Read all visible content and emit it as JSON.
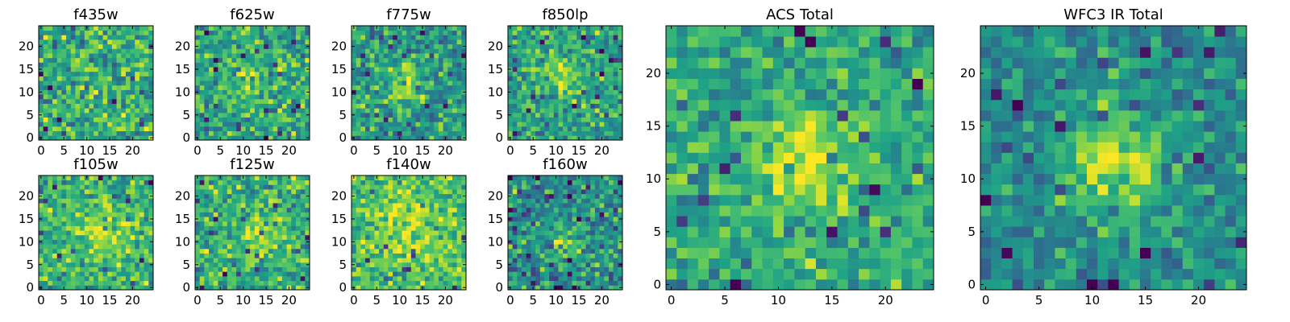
{
  "figure": {
    "colormap": "viridis",
    "colormap_stops": [
      "#440154",
      "#46327e",
      "#365c8d",
      "#277f8e",
      "#1fa187",
      "#4ac16d",
      "#a0da39",
      "#fde725"
    ],
    "axis_color": "#000000"
  },
  "chart_data": [
    {
      "type": "heatmap",
      "title": "f435w",
      "grid_size": 25,
      "xlim": [
        0,
        24
      ],
      "ylim": [
        0,
        24
      ],
      "x_ticks": [
        0,
        5,
        10,
        15,
        20
      ],
      "y_ticks": [
        0,
        5,
        10,
        15,
        20
      ],
      "x_tick_labels": [
        "0",
        "5",
        "10",
        "15",
        "20"
      ],
      "y_tick_labels": [
        "0",
        "5",
        "10",
        "15",
        "20"
      ],
      "value_range": [
        0,
        1
      ],
      "signal": {
        "center": [
          12,
          12
        ],
        "amplitude": 0.05,
        "sigma": 3
      },
      "background": {
        "mean": 0.62,
        "noise": 0.2,
        "seed": 11
      }
    },
    {
      "type": "heatmap",
      "title": "f625w",
      "grid_size": 25,
      "xlim": [
        0,
        24
      ],
      "ylim": [
        0,
        24
      ],
      "x_ticks": [
        0,
        5,
        10,
        15,
        20
      ],
      "y_ticks": [
        0,
        5,
        10,
        15,
        20
      ],
      "x_tick_labels": [
        "0",
        "5",
        "10",
        "15",
        "20"
      ],
      "y_tick_labels": [
        "0",
        "5",
        "10",
        "15",
        "20"
      ],
      "value_range": [
        0,
        1
      ],
      "signal": {
        "center": [
          12,
          12
        ],
        "amplitude": 0.2,
        "sigma": 3
      },
      "background": {
        "mean": 0.6,
        "noise": 0.18,
        "seed": 23
      }
    },
    {
      "type": "heatmap",
      "title": "f775w",
      "grid_size": 25,
      "xlim": [
        0,
        24
      ],
      "ylim": [
        0,
        24
      ],
      "x_ticks": [
        0,
        5,
        10,
        15,
        20
      ],
      "y_ticks": [
        0,
        5,
        10,
        15,
        20
      ],
      "x_tick_labels": [
        "0",
        "5",
        "10",
        "15",
        "20"
      ],
      "y_tick_labels": [
        "0",
        "5",
        "10",
        "15",
        "20"
      ],
      "value_range": [
        0,
        1
      ],
      "signal": {
        "center": [
          11,
          12
        ],
        "amplitude": 0.3,
        "sigma": 3
      },
      "background": {
        "mean": 0.55,
        "noise": 0.18,
        "seed": 37
      }
    },
    {
      "type": "heatmap",
      "title": "f850lp",
      "grid_size": 25,
      "xlim": [
        0,
        24
      ],
      "ylim": [
        0,
        24
      ],
      "x_ticks": [
        0,
        5,
        10,
        15,
        20
      ],
      "y_ticks": [
        0,
        5,
        10,
        15,
        20
      ],
      "x_tick_labels": [
        "0",
        "5",
        "10",
        "15",
        "20"
      ],
      "y_tick_labels": [
        "0",
        "5",
        "10",
        "15",
        "20"
      ],
      "value_range": [
        0,
        1
      ],
      "signal": {
        "center": [
          11,
          13
        ],
        "amplitude": 0.25,
        "sigma": 3
      },
      "background": {
        "mean": 0.58,
        "noise": 0.17,
        "seed": 41
      }
    },
    {
      "type": "heatmap",
      "title": "f105w",
      "grid_size": 25,
      "xlim": [
        0,
        24
      ],
      "ylim": [
        0,
        24
      ],
      "x_ticks": [
        0,
        5,
        10,
        15,
        20
      ],
      "y_ticks": [
        0,
        5,
        10,
        15,
        20
      ],
      "x_tick_labels": [
        "0",
        "5",
        "10",
        "15",
        "20"
      ],
      "y_tick_labels": [
        "0",
        "5",
        "10",
        "15",
        "20"
      ],
      "value_range": [
        0,
        1
      ],
      "signal": {
        "center": [
          13,
          12
        ],
        "amplitude": 0.2,
        "sigma": 4
      },
      "background": {
        "mean": 0.66,
        "noise": 0.17,
        "seed": 53
      }
    },
    {
      "type": "heatmap",
      "title": "f125w",
      "grid_size": 25,
      "xlim": [
        0,
        24
      ],
      "ylim": [
        0,
        24
      ],
      "x_ticks": [
        0,
        5,
        10,
        15,
        20
      ],
      "y_ticks": [
        0,
        5,
        10,
        15,
        20
      ],
      "x_tick_labels": [
        "0",
        "5",
        "10",
        "15",
        "20"
      ],
      "y_tick_labels": [
        "0",
        "5",
        "10",
        "15",
        "20"
      ],
      "value_range": [
        0,
        1
      ],
      "signal": {
        "center": [
          14,
          11
        ],
        "amplitude": 0.25,
        "sigma": 3.5
      },
      "background": {
        "mean": 0.64,
        "noise": 0.18,
        "seed": 67
      }
    },
    {
      "type": "heatmap",
      "title": "f140w",
      "grid_size": 25,
      "xlim": [
        0,
        24
      ],
      "ylim": [
        0,
        24
      ],
      "x_ticks": [
        0,
        5,
        10,
        15,
        20
      ],
      "y_ticks": [
        0,
        5,
        10,
        15,
        20
      ],
      "x_tick_labels": [
        "0",
        "5",
        "10",
        "15",
        "20"
      ],
      "y_tick_labels": [
        "0",
        "5",
        "10",
        "15",
        "20"
      ],
      "value_range": [
        0,
        1
      ],
      "signal": {
        "center": [
          12,
          13
        ],
        "amplitude": 0.2,
        "sigma": 4.5
      },
      "background": {
        "mean": 0.7,
        "noise": 0.16,
        "seed": 71
      }
    },
    {
      "type": "heatmap",
      "title": "f160w",
      "grid_size": 25,
      "xlim": [
        0,
        24
      ],
      "ylim": [
        0,
        24
      ],
      "x_ticks": [
        0,
        5,
        10,
        15,
        20
      ],
      "y_ticks": [
        0,
        5,
        10,
        15,
        20
      ],
      "x_tick_labels": [
        "0",
        "5",
        "10",
        "15",
        "20"
      ],
      "y_tick_labels": [
        "0",
        "5",
        "10",
        "15",
        "20"
      ],
      "value_range": [
        0,
        1
      ],
      "signal": {
        "center": [
          13,
          11
        ],
        "amplitude": 0.3,
        "sigma": 2.5
      },
      "background": {
        "mean": 0.5,
        "noise": 0.2,
        "seed": 83
      }
    },
    {
      "type": "heatmap",
      "title": "ACS Total",
      "grid_size": 25,
      "xlim": [
        0,
        24
      ],
      "ylim": [
        0,
        24
      ],
      "x_ticks": [
        0,
        5,
        10,
        15,
        20
      ],
      "y_ticks": [
        0,
        5,
        10,
        15,
        20
      ],
      "x_tick_labels": [
        "0",
        "5",
        "10",
        "15",
        "20"
      ],
      "y_tick_labels": [
        "0",
        "5",
        "10",
        "15",
        "20"
      ],
      "value_range": [
        0,
        1
      ],
      "signal": {
        "center": [
          12.5,
          11.5
        ],
        "amplitude": 0.35,
        "sigma": 3
      },
      "background": {
        "mean": 0.6,
        "noise": 0.15,
        "seed": 97
      }
    },
    {
      "type": "heatmap",
      "title": "WFC3 IR Total",
      "grid_size": 25,
      "xlim": [
        0,
        24
      ],
      "ylim": [
        0,
        24
      ],
      "x_ticks": [
        0,
        5,
        10,
        15,
        20
      ],
      "y_ticks": [
        0,
        5,
        10,
        15,
        20
      ],
      "x_tick_labels": [
        "0",
        "5",
        "10",
        "15",
        "20"
      ],
      "y_tick_labels": [
        "0",
        "5",
        "10",
        "15",
        "20"
      ],
      "value_range": [
        0,
        1
      ],
      "signal": {
        "center": [
          12.5,
          11.5
        ],
        "amplitude": 0.4,
        "sigma": 3.2
      },
      "background": {
        "mean": 0.5,
        "noise": 0.14,
        "seed": 101
      }
    }
  ]
}
